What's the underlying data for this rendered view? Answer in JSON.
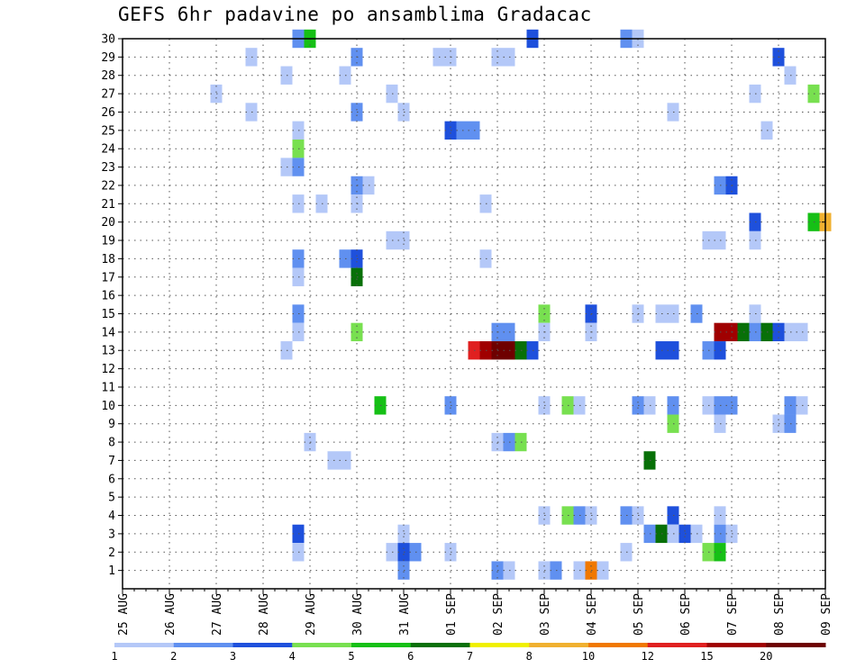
{
  "chart_data": {
    "type": "heatmap",
    "title": "GEFS 6hr padavine po ansamblima Gradacac",
    "xlabel": "",
    "ylabel": "",
    "x_ticks": [
      "25 AUG",
      "26 AUG",
      "27 AUG",
      "28 AUG",
      "29 AUG",
      "30 AUG",
      "31 AUG",
      "01 SEP",
      "02 SEP",
      "03 SEP",
      "04 SEP",
      "05 SEP",
      "06 SEP",
      "07 SEP",
      "08 SEP",
      "09 SEP"
    ],
    "y_ticks": [
      1,
      2,
      3,
      4,
      5,
      6,
      7,
      8,
      9,
      10,
      11,
      12,
      13,
      14,
      15,
      16,
      17,
      18,
      19,
      20,
      21,
      22,
      23,
      24,
      25,
      26,
      27,
      28,
      29,
      30
    ],
    "xlim": [
      0,
      60
    ],
    "ylim": [
      0,
      30
    ],
    "grid": true,
    "color_levels": [
      "1",
      "2",
      "3",
      "4",
      "5",
      "6",
      "7",
      "8",
      "10",
      "12",
      "15",
      "20"
    ],
    "color_scale": [
      "#b4c8f8",
      "#6090f0",
      "#1e50dc",
      "#78e050",
      "#16c016",
      "#087008",
      "#f0f000",
      "#f0b030",
      "#f07800",
      "#e02020",
      "#a00000",
      "#6e0000"
    ],
    "cells": [
      [
        30,
        15,
        1
      ],
      [
        30,
        16,
        4
      ],
      [
        30,
        35,
        2
      ],
      [
        30,
        43,
        1
      ],
      [
        30,
        44,
        0
      ],
      [
        29,
        11,
        0
      ],
      [
        29,
        20,
        1
      ],
      [
        29,
        27,
        0
      ],
      [
        29,
        28,
        0
      ],
      [
        29,
        32,
        0
      ],
      [
        29,
        33,
        0
      ],
      [
        29,
        56,
        2
      ],
      [
        28,
        14,
        0
      ],
      [
        28,
        19,
        0
      ],
      [
        28,
        57,
        0
      ],
      [
        27,
        8,
        0
      ],
      [
        27,
        23,
        0
      ],
      [
        27,
        54,
        0
      ],
      [
        27,
        59,
        3
      ],
      [
        26,
        11,
        0
      ],
      [
        26,
        20,
        1
      ],
      [
        26,
        24,
        0
      ],
      [
        26,
        47,
        0
      ],
      [
        25,
        15,
        0
      ],
      [
        25,
        28,
        2
      ],
      [
        25,
        29,
        1
      ],
      [
        25,
        30,
        1
      ],
      [
        25,
        55,
        0
      ],
      [
        24,
        15,
        3
      ],
      [
        23,
        14,
        0
      ],
      [
        23,
        15,
        1
      ],
      [
        22,
        20,
        1
      ],
      [
        22,
        21,
        0
      ],
      [
        22,
        51,
        1
      ],
      [
        22,
        52,
        2
      ],
      [
        21,
        15,
        0
      ],
      [
        21,
        17,
        0
      ],
      [
        21,
        20,
        0
      ],
      [
        21,
        31,
        0
      ],
      [
        20,
        54,
        2
      ],
      [
        20,
        59,
        4
      ],
      [
        20,
        60,
        7
      ],
      [
        19,
        23,
        0
      ],
      [
        19,
        24,
        0
      ],
      [
        19,
        50,
        0
      ],
      [
        19,
        51,
        0
      ],
      [
        19,
        54,
        0
      ],
      [
        18,
        15,
        1
      ],
      [
        18,
        19,
        1
      ],
      [
        18,
        20,
        2
      ],
      [
        18,
        31,
        0
      ],
      [
        17,
        15,
        0
      ],
      [
        17,
        20,
        5
      ],
      [
        15,
        15,
        1
      ],
      [
        15,
        36,
        3
      ],
      [
        15,
        40,
        2
      ],
      [
        15,
        44,
        0
      ],
      [
        15,
        46,
        0
      ],
      [
        15,
        47,
        0
      ],
      [
        15,
        49,
        1
      ],
      [
        15,
        54,
        0
      ],
      [
        14,
        15,
        0
      ],
      [
        14,
        20,
        3
      ],
      [
        14,
        32,
        1
      ],
      [
        14,
        33,
        1
      ],
      [
        14,
        36,
        0
      ],
      [
        14,
        40,
        0
      ],
      [
        14,
        51,
        10
      ],
      [
        14,
        52,
        10
      ],
      [
        14,
        53,
        5
      ],
      [
        14,
        54,
        1
      ],
      [
        14,
        55,
        5
      ],
      [
        14,
        56,
        2
      ],
      [
        14,
        57,
        0
      ],
      [
        14,
        58,
        0
      ],
      [
        13,
        14,
        0
      ],
      [
        13,
        30,
        9
      ],
      [
        13,
        31,
        10
      ],
      [
        13,
        32,
        11
      ],
      [
        13,
        33,
        11
      ],
      [
        13,
        34,
        5
      ],
      [
        13,
        35,
        2
      ],
      [
        13,
        46,
        2
      ],
      [
        13,
        47,
        2
      ],
      [
        13,
        50,
        1
      ],
      [
        13,
        51,
        2
      ],
      [
        10,
        22,
        4
      ],
      [
        10,
        28,
        1
      ],
      [
        10,
        36,
        0
      ],
      [
        10,
        38,
        3
      ],
      [
        10,
        39,
        0
      ],
      [
        10,
        44,
        1
      ],
      [
        10,
        45,
        0
      ],
      [
        10,
        47,
        1
      ],
      [
        10,
        50,
        0
      ],
      [
        10,
        51,
        1
      ],
      [
        10,
        52,
        1
      ],
      [
        10,
        57,
        1
      ],
      [
        10,
        58,
        0
      ],
      [
        9,
        47,
        3
      ],
      [
        9,
        51,
        0
      ],
      [
        9,
        56,
        0
      ],
      [
        9,
        57,
        1
      ],
      [
        8,
        16,
        0
      ],
      [
        8,
        32,
        0
      ],
      [
        8,
        33,
        1
      ],
      [
        8,
        34,
        3
      ],
      [
        7,
        18,
        0
      ],
      [
        7,
        19,
        0
      ],
      [
        7,
        45,
        5
      ],
      [
        4,
        36,
        0
      ],
      [
        4,
        38,
        3
      ],
      [
        4,
        39,
        1
      ],
      [
        4,
        40,
        0
      ],
      [
        4,
        43,
        1
      ],
      [
        4,
        44,
        0
      ],
      [
        4,
        47,
        2
      ],
      [
        4,
        51,
        0
      ],
      [
        3,
        15,
        2
      ],
      [
        3,
        24,
        0
      ],
      [
        3,
        45,
        1
      ],
      [
        3,
        46,
        5
      ],
      [
        3,
        47,
        0
      ],
      [
        3,
        48,
        2
      ],
      [
        3,
        49,
        0
      ],
      [
        3,
        51,
        1
      ],
      [
        3,
        52,
        0
      ],
      [
        2,
        15,
        0
      ],
      [
        2,
        23,
        0
      ],
      [
        2,
        24,
        2
      ],
      [
        2,
        25,
        1
      ],
      [
        2,
        28,
        0
      ],
      [
        2,
        43,
        0
      ],
      [
        2,
        50,
        3
      ],
      [
        2,
        51,
        4
      ],
      [
        1,
        24,
        1
      ],
      [
        1,
        32,
        1
      ],
      [
        1,
        33,
        0
      ],
      [
        1,
        36,
        0
      ],
      [
        1,
        37,
        1
      ],
      [
        1,
        39,
        0
      ],
      [
        1,
        40,
        8
      ],
      [
        1,
        41,
        0
      ]
    ]
  }
}
